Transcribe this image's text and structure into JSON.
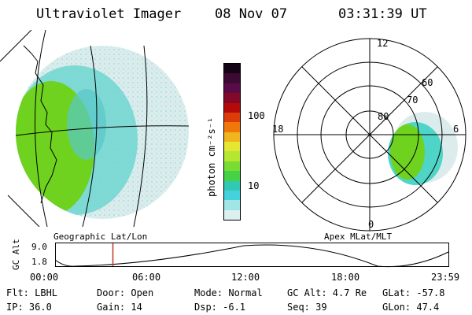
{
  "header": {
    "title": "Ultraviolet Imager",
    "date": "08 Nov 07",
    "time": "03:31:39 UT"
  },
  "left_panel": {
    "caption": "Geographic Lat/Lon"
  },
  "right_panel": {
    "caption": "Apex MLat/MLT",
    "mlt_labels": {
      "top": "12",
      "left": "18",
      "right": "6",
      "bottom": "0"
    },
    "lat_labels": [
      "80",
      "70",
      "60"
    ]
  },
  "colorbar": {
    "unit_label": "photon cm⁻²s⁻¹",
    "tick_labels": [
      "100",
      "10"
    ],
    "colors": [
      "#140514",
      "#3c0a32",
      "#5a0a46",
      "#820a28",
      "#b40a0a",
      "#dc3c0a",
      "#f0780a",
      "#f0b41e",
      "#e6e632",
      "#b4e632",
      "#78dc32",
      "#46d246",
      "#32c8b4",
      "#46d2dc",
      "#a0e6e6",
      "#dcf0f0"
    ]
  },
  "altitude_plot": {
    "y_label": "GC Alt",
    "y_ticks": [
      "9.0",
      "1.8"
    ],
    "x_ticks": [
      "00:00",
      "06:00",
      "12:00",
      "18:00",
      "23:59"
    ],
    "current_time_fraction": 0.147
  },
  "status": {
    "flt": "Flt: LBHL",
    "ip": "IP: 36.0",
    "door": "Door: Open",
    "gain": "Gain: 14",
    "mode": "Mode: Normal",
    "dsp": "Dsp:   -6.1",
    "gc_alt": "GC Alt: 4.7 Re",
    "seq": "Seq: 39",
    "glat": "GLat: -57.8",
    "glon": "GLon:  47.4"
  },
  "colors": {
    "green": "#6fd21e",
    "cyan": "#4fd4c8",
    "light": "#dcecec",
    "marker": "#c0392b"
  }
}
